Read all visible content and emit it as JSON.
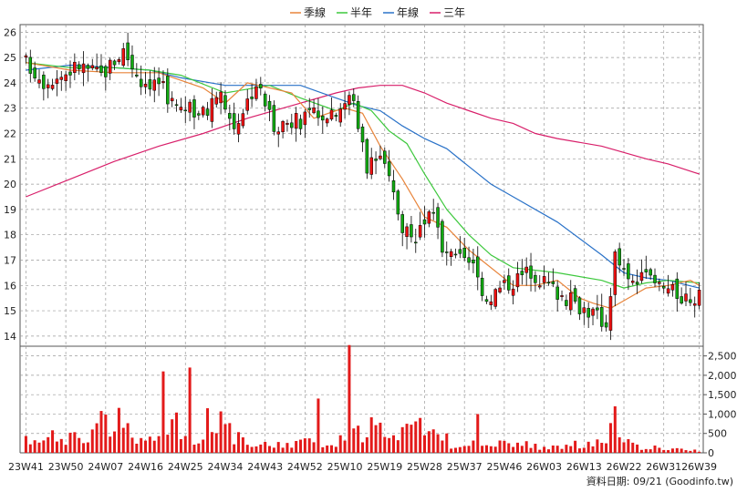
{
  "chart_data": {
    "type": "candlestick",
    "legend": [
      {
        "name": "季線",
        "color": "#e8843a"
      },
      {
        "name": "半年",
        "color": "#3cc83c"
      },
      {
        "name": "年線",
        "color": "#2a72c8"
      },
      {
        "name": "三年",
        "color": "#d81f6a"
      }
    ],
    "y_axis_price": {
      "range": [
        13.6,
        26.3
      ],
      "ticks": [
        14,
        15,
        16,
        17,
        18,
        19,
        20,
        21,
        22,
        23,
        24,
        25,
        26
      ]
    },
    "y_axis_volume": {
      "range": [
        0,
        2750
      ],
      "ticks": [
        0,
        500,
        1000,
        1500,
        2000,
        2500
      ],
      "tick_labels": [
        "0",
        "500",
        "1,000",
        "1,500",
        "2,000",
        "2,500"
      ]
    },
    "x_tick_labels": [
      "23W41",
      "23W50",
      "24W07",
      "24W16",
      "24W25",
      "24W34",
      "24W43",
      "24W52",
      "25W10",
      "25W19",
      "25W28",
      "25W37",
      "25W46",
      "26W03",
      "26W13",
      "26W22",
      "26W31",
      "26W39"
    ],
    "x_tick_positions": [
      0,
      9,
      18,
      27,
      36,
      45,
      54,
      63,
      72,
      81,
      90,
      99,
      108,
      117,
      126,
      135,
      144,
      152
    ],
    "ma_series": {
      "quarter": [
        [
          0,
          24.8
        ],
        [
          10,
          24.5
        ],
        [
          20,
          24.4
        ],
        [
          30,
          24.4
        ],
        [
          40,
          23.8
        ],
        [
          45,
          23.2
        ],
        [
          50,
          24.0
        ],
        [
          60,
          23.6
        ],
        [
          65,
          22.6
        ],
        [
          70,
          22.9
        ],
        [
          72,
          23.0
        ],
        [
          76,
          22.8
        ],
        [
          80,
          21.5
        ],
        [
          85,
          20.2
        ],
        [
          90,
          18.7
        ],
        [
          95,
          18.3
        ],
        [
          100,
          17.4
        ],
        [
          110,
          16.0
        ],
        [
          115,
          16.0
        ],
        [
          120,
          16.2
        ],
        [
          125,
          15.5
        ],
        [
          128,
          15.3
        ],
        [
          132,
          15.1
        ],
        [
          135,
          15.4
        ],
        [
          140,
          15.9
        ],
        [
          145,
          16.0
        ],
        [
          150,
          16.2
        ],
        [
          152,
          16.0
        ]
      ],
      "half": [
        [
          0,
          24.8
        ],
        [
          10,
          24.6
        ],
        [
          20,
          24.6
        ],
        [
          28,
          24.5
        ],
        [
          35,
          24.3
        ],
        [
          45,
          23.6
        ],
        [
          55,
          23.9
        ],
        [
          62,
          23.4
        ],
        [
          70,
          22.9
        ],
        [
          74,
          23.2
        ],
        [
          78,
          22.9
        ],
        [
          82,
          22.1
        ],
        [
          86,
          21.6
        ],
        [
          90,
          20.4
        ],
        [
          95,
          19.0
        ],
        [
          100,
          18.0
        ],
        [
          105,
          17.2
        ],
        [
          110,
          16.7
        ],
        [
          120,
          16.5
        ],
        [
          130,
          16.2
        ],
        [
          135,
          15.9
        ],
        [
          140,
          16.1
        ],
        [
          145,
          16.2
        ],
        [
          152,
          16.1
        ]
      ],
      "year": [
        [
          0,
          24.5
        ],
        [
          10,
          24.7
        ],
        [
          20,
          24.6
        ],
        [
          28,
          24.5
        ],
        [
          35,
          24.2
        ],
        [
          45,
          23.9
        ],
        [
          55,
          23.9
        ],
        [
          62,
          23.9
        ],
        [
          70,
          23.4
        ],
        [
          75,
          23.1
        ],
        [
          80,
          22.9
        ],
        [
          85,
          22.3
        ],
        [
          90,
          21.8
        ],
        [
          95,
          21.4
        ],
        [
          100,
          20.7
        ],
        [
          105,
          20.0
        ],
        [
          110,
          19.5
        ],
        [
          120,
          18.5
        ],
        [
          130,
          17.2
        ],
        [
          135,
          16.5
        ],
        [
          140,
          16.3
        ],
        [
          145,
          16.2
        ],
        [
          152,
          15.9
        ]
      ],
      "three_year": [
        [
          0,
          19.5
        ],
        [
          10,
          20.2
        ],
        [
          20,
          20.9
        ],
        [
          30,
          21.5
        ],
        [
          40,
          22.0
        ],
        [
          50,
          22.6
        ],
        [
          60,
          23.1
        ],
        [
          70,
          23.6
        ],
        [
          75,
          23.8
        ],
        [
          80,
          23.9
        ],
        [
          85,
          23.9
        ],
        [
          90,
          23.6
        ],
        [
          95,
          23.2
        ],
        [
          100,
          22.9
        ],
        [
          105,
          22.6
        ],
        [
          110,
          22.4
        ],
        [
          115,
          22.0
        ],
        [
          120,
          21.8
        ],
        [
          130,
          21.5
        ],
        [
          140,
          21.0
        ],
        [
          145,
          20.8
        ],
        [
          152,
          20.4
        ]
      ]
    },
    "credit": "資料日期: 09/21  (Goodinfo.tw)"
  }
}
